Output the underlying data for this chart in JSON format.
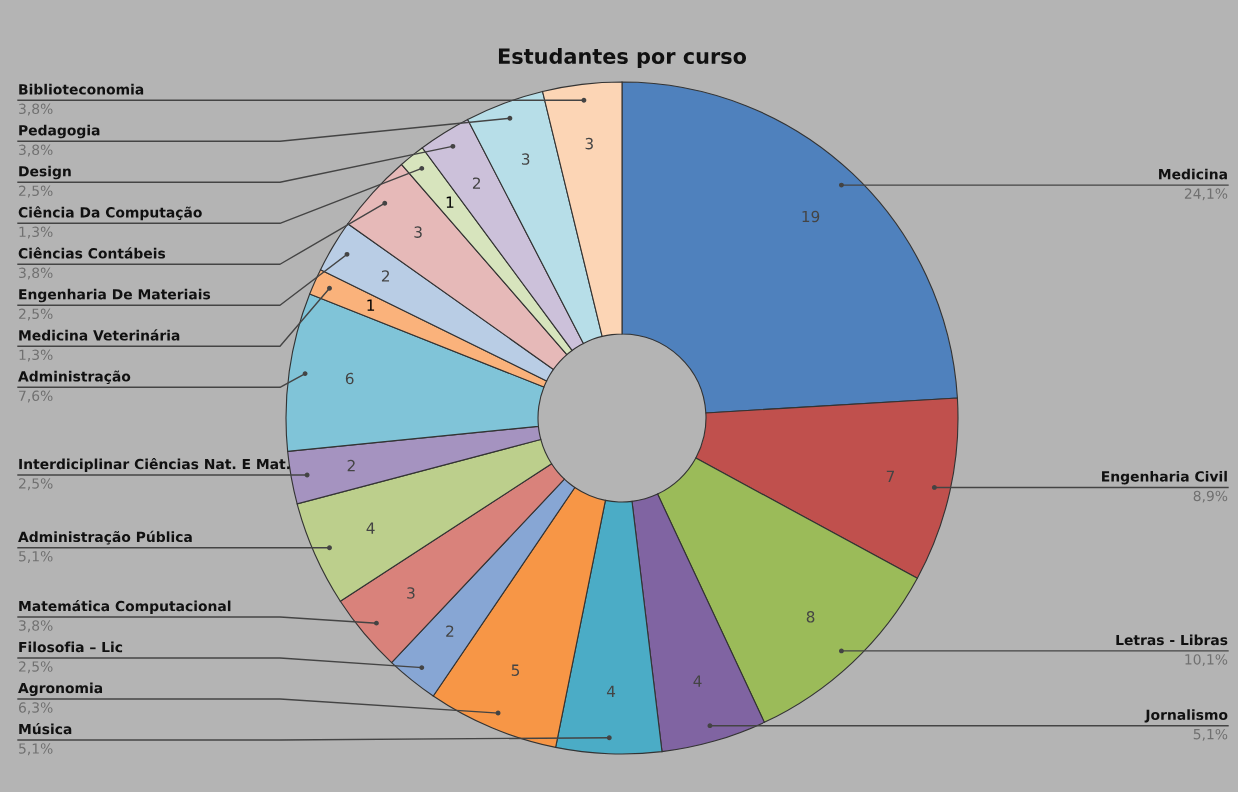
{
  "chart_data": {
    "type": "donut",
    "title": "Estudantes por curso",
    "categories": [
      "Medicina",
      "Engenharia Civil",
      "Letras - Libras",
      "Jornalismo",
      "Música",
      "Agronomia",
      "Filosofia – Lic",
      "Matemática Computacional",
      "Administração Pública",
      "Interdiciplinar Ciências Nat. E Mat.",
      "Administração",
      "Medicina Veterinária",
      "Engenharia De Materiais",
      "Ciências Contábeis",
      "Ciência Da Computação",
      "Design",
      "Pedagogia",
      "Biblioteconomia"
    ],
    "values": [
      19,
      7,
      8,
      4,
      4,
      5,
      2,
      3,
      4,
      2,
      6,
      1,
      2,
      3,
      1,
      2,
      3,
      3
    ],
    "annotations": [
      "24,1%",
      "8,9%",
      "10,1%",
      "5,1%",
      "5,1%",
      "6,3%",
      "2,5%",
      "3,8%",
      "5,1%",
      "2,5%",
      "7,6%",
      "1,3%",
      "2,5%",
      "3,8%",
      "1,3%",
      "2,5%",
      "3,8%",
      "3,8%"
    ],
    "colors": [
      "#4f81bd",
      "#c0504d",
      "#9bbb59",
      "#8064a2",
      "#4bacc6",
      "#f79646",
      "#87a6d4",
      "#d9827b",
      "#bccf8c",
      "#a593c0",
      "#80c4d8",
      "#fab27b",
      "#b9cde5",
      "#e6b9b8",
      "#d7e4bd",
      "#ccc1da",
      "#b7dee8",
      "#fcd5b5"
    ],
    "data_labels": true
  }
}
